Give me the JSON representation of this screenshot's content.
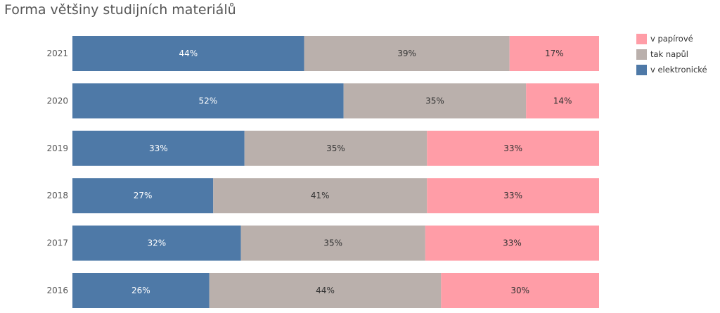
{
  "chart_data": {
    "type": "bar",
    "orientation": "horizontal",
    "stacked": true,
    "title": "Forma většiny studijních materiálů",
    "categories": [
      "2021",
      "2020",
      "2019",
      "2018",
      "2017",
      "2016"
    ],
    "series": [
      {
        "name": "v elektronické",
        "color": "#4e79a7",
        "values": [
          44,
          52,
          33,
          27,
          32,
          26
        ],
        "labels": [
          "44%",
          "52%",
          "33%",
          "27%",
          "32%",
          "26%"
        ]
      },
      {
        "name": "tak napůl",
        "color": "#bab0ac",
        "values": [
          39,
          35,
          35,
          41,
          35,
          44
        ],
        "labels": [
          "39%",
          "35%",
          "35%",
          "41%",
          "35%",
          "44%"
        ]
      },
      {
        "name": "v papírové",
        "color": "#ff9da7",
        "values": [
          17,
          14,
          33,
          33,
          33,
          30
        ],
        "labels": [
          "17%",
          "14%",
          "33%",
          "33%",
          "33%",
          "30%"
        ]
      }
    ],
    "legend": {
      "position": "right",
      "entries": [
        {
          "name": "v papírové",
          "color": "#ff9da7"
        },
        {
          "name": "tak napůl",
          "color": "#bab0ac"
        },
        {
          "name": "v elektronické",
          "color": "#4e79a7"
        }
      ]
    },
    "grid": false
  }
}
